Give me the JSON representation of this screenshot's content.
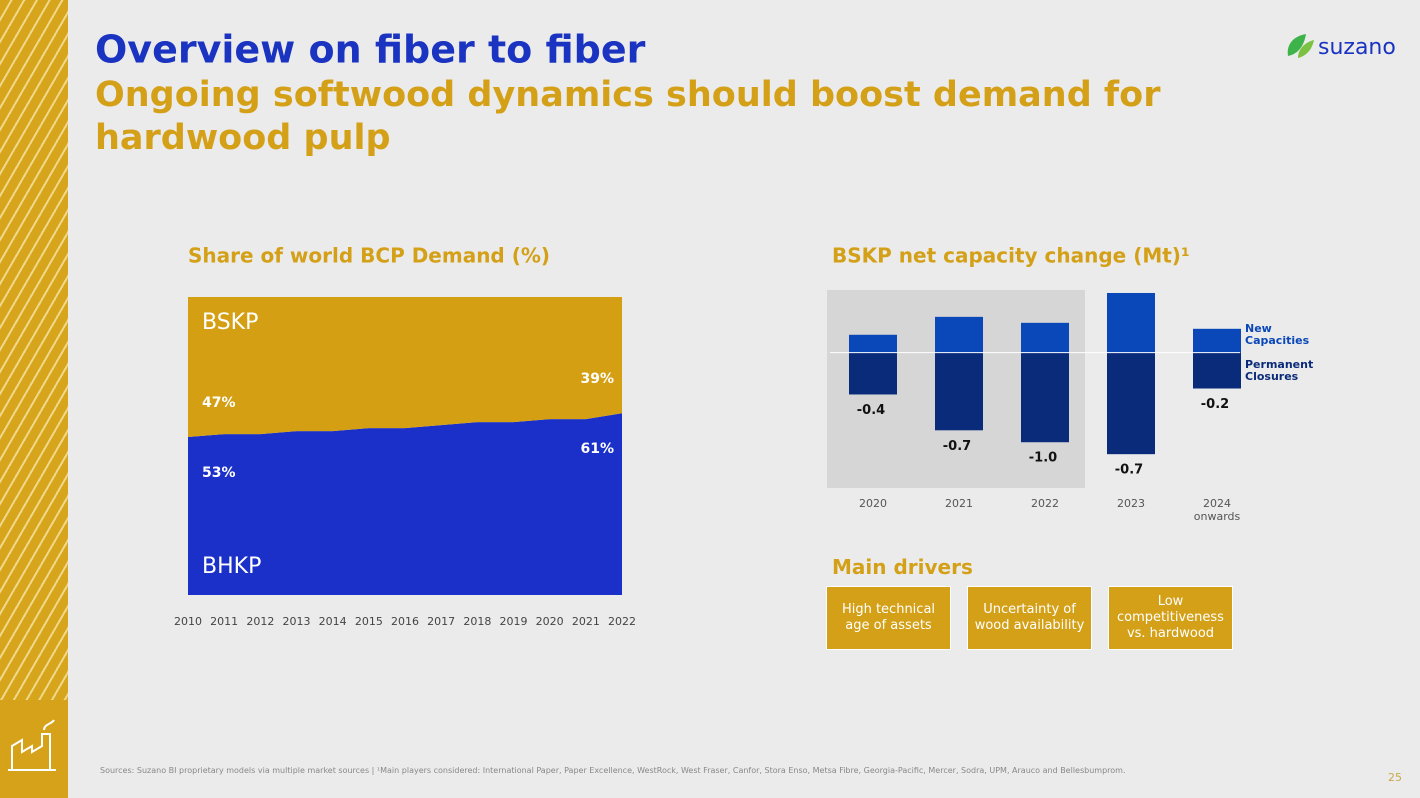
{
  "header": {
    "title": "Overview on fiber to fiber",
    "subtitle": "Ongoing softwood dynamics should boost demand for hardwood pulp",
    "logo": "suzano"
  },
  "chart_data": [
    {
      "type": "area",
      "title": "Share of world BCP Demand (%)",
      "stacked": true,
      "categories": [
        "2010",
        "2011",
        "2012",
        "2013",
        "2014",
        "2015",
        "2016",
        "2017",
        "2018",
        "2019",
        "2020",
        "2021",
        "2022"
      ],
      "ylim": [
        0,
        100
      ],
      "series": [
        {
          "name": "BHKP",
          "color": "#1a30c8",
          "values": [
            53,
            54,
            54,
            55,
            55,
            56,
            56,
            57,
            58,
            58,
            59,
            59,
            61
          ],
          "value_labels": [
            "53%",
            null,
            null,
            null,
            null,
            null,
            null,
            null,
            null,
            null,
            null,
            null,
            "61%"
          ]
        },
        {
          "name": "BSKP",
          "color": "#d49f12",
          "values": [
            47,
            46,
            46,
            45,
            45,
            44,
            44,
            43,
            42,
            42,
            41,
            41,
            39
          ],
          "value_labels": [
            "47%",
            null,
            null,
            null,
            null,
            null,
            null,
            null,
            null,
            null,
            null,
            null,
            "39%"
          ]
        }
      ]
    },
    {
      "type": "bar",
      "title": "BSKP net capacity change (Mt)¹",
      "categories": [
        "2020",
        "2021",
        "2022",
        "2023",
        "2024 onwards"
      ],
      "ylim": [
        -2.3,
        1.05
      ],
      "series": [
        {
          "name": "New Capacities",
          "color": "#0a47b8",
          "values": [
            0.3,
            0.6,
            0.5,
            1.0,
            0.4
          ]
        },
        {
          "name": "Permanent Closures",
          "color": "#0a2a7a",
          "values": [
            -0.7,
            -1.3,
            -1.5,
            -1.7,
            -0.6
          ]
        }
      ],
      "net": {
        "values": [
          -0.4,
          -0.7,
          -1.0,
          -0.7,
          -0.2
        ],
        "value_labels": [
          "-0.4",
          "-0.7",
          "-1.0",
          "-0.7",
          "-0.2"
        ]
      }
    }
  ],
  "drivers": {
    "title": "Main drivers",
    "items": [
      "High technical age of assets",
      "Uncertainty of wood availability",
      "Low competitiveness vs. hardwood"
    ]
  },
  "footnote": "Sources: Suzano BI proprietary models via multiple market sources | ¹Main players considered: International Paper, Paper Excellence, WestRock, West Fraser, Canfor, Stora Enso, Metsa Fibre, Georgia-Pacific, Mercer, Sodra, UPM, Arauco and Bellesbumprom.",
  "page_number": "25"
}
